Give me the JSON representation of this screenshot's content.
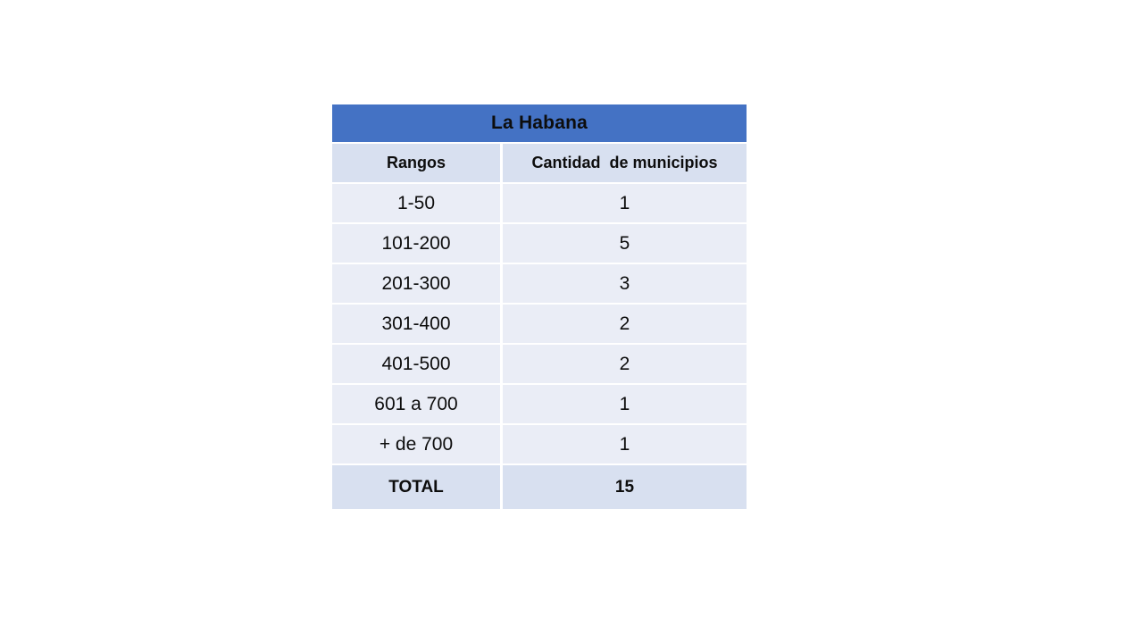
{
  "chart_data": {
    "type": "table",
    "title": "La Habana",
    "columns": [
      "Rangos",
      "Cantidad  de municipios"
    ],
    "rows": [
      [
        "1-50",
        "1"
      ],
      [
        "101-200",
        "5"
      ],
      [
        "201-300",
        "3"
      ],
      [
        "301-400",
        "2"
      ],
      [
        "401-500",
        "2"
      ],
      [
        "601 a 700",
        "1"
      ],
      [
        "+ de 700",
        "1"
      ]
    ],
    "total_row": [
      "TOTAL",
      "15"
    ]
  },
  "colors": {
    "title_bg": "#4472C4",
    "header_band_bg": "#D8E0F0",
    "data_band_bg": "#EAEDF6",
    "separator": "#FFFFFF",
    "text": "#0D0D0D",
    "page_bg": "#FFFFFF"
  }
}
